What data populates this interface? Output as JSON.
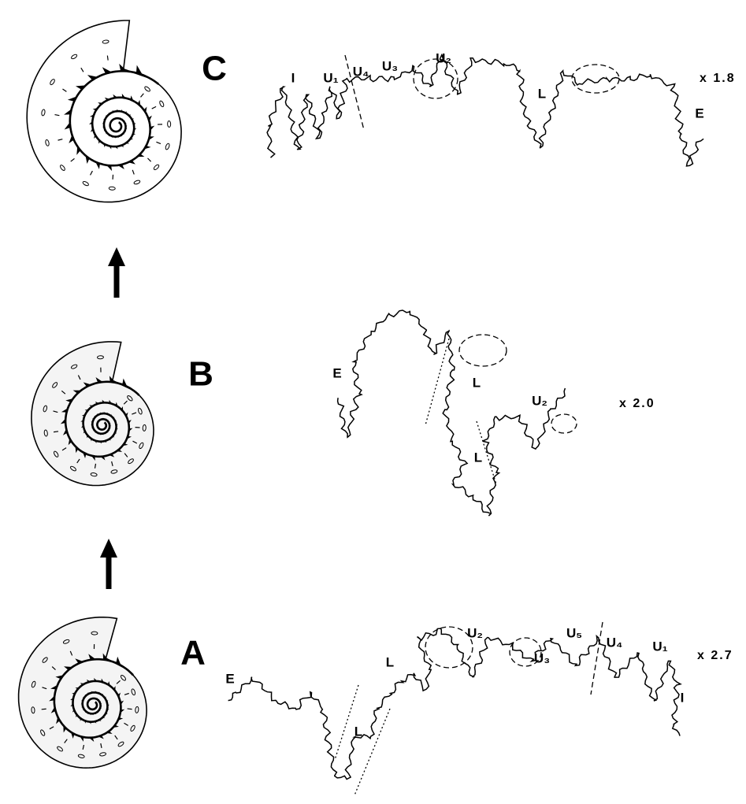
{
  "panels": [
    {
      "letter": "C",
      "scale": "x 1.8",
      "labels": [
        "I",
        "U₁",
        "U₄",
        "U₃",
        "U₂",
        "L",
        "E"
      ]
    },
    {
      "letter": "B",
      "scale": "x 2.0",
      "labels": [
        "E",
        "L",
        "U₂",
        "L"
      ]
    },
    {
      "letter": "A",
      "scale": "x 2.7",
      "labels": [
        "E",
        "L",
        "L",
        "U₂",
        "U₃",
        "U₅",
        "U₄",
        "U₁",
        "I"
      ]
    }
  ]
}
